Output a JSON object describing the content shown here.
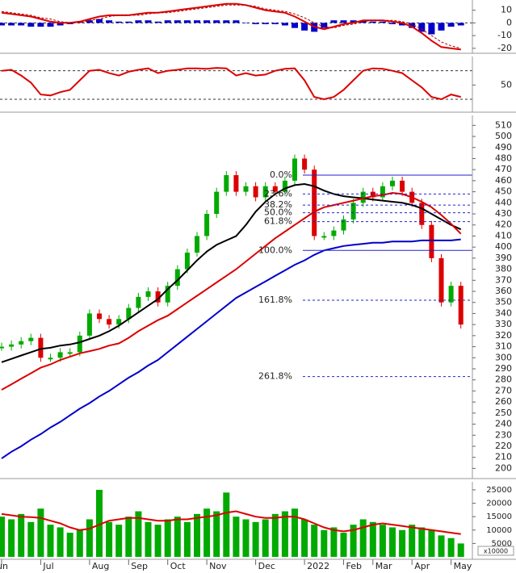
{
  "chart_data": [
    {
      "type": "macd",
      "ylim": [
        -22,
        18
      ],
      "yticks": [
        10,
        0,
        -10,
        -20
      ],
      "series": [
        {
          "color": "#0000cc",
          "kind": "bar",
          "values": [
            -2,
            -2,
            -2,
            -3,
            -3,
            -3,
            -2,
            -1,
            1,
            2,
            3,
            2,
            1,
            1,
            2,
            2,
            1,
            2,
            2,
            2,
            2,
            2,
            2,
            2,
            2,
            0,
            -1,
            -1,
            -1,
            -2,
            -4,
            -6,
            -7,
            -4,
            2,
            2,
            2,
            2,
            1,
            1,
            -1,
            -2,
            -4,
            -7,
            -9,
            -6,
            -3,
            -2
          ]
        },
        {
          "color": "#dd0000",
          "kind": "line",
          "values": [
            8,
            7,
            6,
            5,
            3,
            1,
            0,
            0,
            1,
            3,
            5,
            6,
            6,
            6,
            7,
            8,
            8,
            9,
            10,
            11,
            12,
            13,
            14,
            15,
            15,
            14,
            12,
            10,
            9,
            8,
            5,
            1,
            -3,
            -5,
            -3,
            -1,
            0,
            2,
            2,
            2,
            1,
            0,
            -3,
            -8,
            -14,
            -19,
            -20,
            -21
          ]
        },
        {
          "color": "#aa0000",
          "kind": "dashed",
          "values": [
            9,
            8,
            7,
            6,
            4,
            3,
            1,
            0,
            0,
            2,
            3,
            5,
            6,
            6,
            6,
            7,
            8,
            8,
            9,
            10,
            11,
            12,
            13,
            14,
            14,
            14,
            13,
            11,
            10,
            9,
            7,
            4,
            0,
            -3,
            -4,
            -2,
            -1,
            1,
            2,
            2,
            2,
            1,
            -1,
            -5,
            -10,
            -15,
            -18,
            -20
          ]
        }
      ]
    },
    {
      "type": "oscillator",
      "ylim": [
        -2,
        110
      ],
      "yticks": [
        50
      ],
      "levels": [
        80,
        20
      ],
      "series": [
        {
          "color": "#dd0000",
          "kind": "line",
          "values": [
            80,
            82,
            70,
            55,
            30,
            28,
            35,
            40,
            60,
            80,
            82,
            75,
            70,
            78,
            82,
            85,
            75,
            80,
            82,
            85,
            85,
            84,
            86,
            85,
            70,
            75,
            70,
            72,
            80,
            84,
            85,
            60,
            25,
            20,
            25,
            40,
            60,
            80,
            85,
            84,
            80,
            75,
            60,
            45,
            25,
            20,
            30,
            25
          ]
        }
      ]
    },
    {
      "type": "price",
      "categories": [
        "Jun",
        null,
        null,
        null,
        "Jul",
        null,
        null,
        null,
        null,
        "Aug",
        null,
        null,
        null,
        "Sep",
        null,
        null,
        null,
        "Oct",
        null,
        null,
        null,
        "Nov",
        null,
        null,
        null,
        null,
        "Dec",
        null,
        null,
        null,
        null,
        "2022",
        null,
        null,
        null,
        "Feb",
        null,
        null,
        "Mar",
        null,
        null,
        null,
        "Apr",
        null,
        null,
        null,
        "May",
        null
      ],
      "ylim": [
        193,
        519
      ],
      "yticks": [
        200,
        210,
        220,
        230,
        240,
        250,
        260,
        270,
        280,
        290,
        300,
        310,
        320,
        330,
        340,
        350,
        360,
        370,
        380,
        390,
        400,
        410,
        420,
        430,
        440,
        450,
        460,
        470,
        480,
        490,
        500,
        510
      ],
      "close": {
        "up_color": "#00aa00",
        "down_color": "#dd0000",
        "values": [
          310,
          312,
          315,
          318,
          300,
          300,
          305,
          305,
          320,
          340,
          335,
          330,
          335,
          345,
          355,
          360,
          350,
          365,
          380,
          395,
          410,
          430,
          450,
          465,
          450,
          455,
          445,
          455,
          450,
          460,
          480,
          470,
          410,
          410,
          415,
          425,
          440,
          450,
          445,
          455,
          460,
          450,
          440,
          420,
          390,
          350,
          365,
          330
        ]
      },
      "series": [
        {
          "color": "#000000",
          "kind": "line",
          "values": [
            296,
            299,
            302,
            305,
            308,
            309,
            311,
            312,
            314,
            317,
            320,
            324,
            329,
            335,
            341,
            347,
            353,
            362,
            370,
            379,
            388,
            396,
            402,
            406,
            410,
            420,
            432,
            441,
            448,
            453,
            456,
            457,
            455,
            451,
            448,
            446,
            445,
            444,
            443,
            442,
            441,
            440,
            438,
            435,
            430,
            425,
            420,
            416
          ]
        },
        {
          "color": "#dd0000",
          "kind": "line",
          "values": [
            271,
            276,
            281,
            286,
            291,
            294,
            298,
            301,
            304,
            306,
            308,
            311,
            313,
            318,
            324,
            329,
            334,
            338,
            344,
            350,
            356,
            362,
            368,
            374,
            380,
            387,
            394,
            401,
            408,
            414,
            420,
            426,
            432,
            436,
            438,
            440,
            442,
            444,
            446,
            447,
            449,
            448,
            445,
            441,
            436,
            429,
            421,
            412
          ]
        },
        {
          "color": "#0000cc",
          "kind": "line",
          "values": [
            209,
            215,
            220,
            226,
            231,
            237,
            242,
            248,
            254,
            259,
            265,
            270,
            276,
            282,
            287,
            293,
            298,
            305,
            312,
            319,
            326,
            333,
            340,
            347,
            354,
            359,
            364,
            369,
            374,
            379,
            384,
            388,
            393,
            397,
            399,
            401,
            402,
            403,
            404,
            404,
            405,
            405,
            405,
            406,
            406,
            406,
            406,
            407
          ]
        }
      ],
      "fib_levels": [
        {
          "label": "0.0%",
          "value": 465,
          "dashed": false
        },
        {
          "label": "23.6%",
          "value": 448,
          "dashed": true
        },
        {
          "label": "38.2%",
          "value": 438,
          "dashed": true
        },
        {
          "label": "50.0%",
          "value": 431,
          "dashed": true
        },
        {
          "label": "61.8%",
          "value": 423,
          "dashed": true
        },
        {
          "label": "100.0%",
          "value": 397,
          "dashed": false
        },
        {
          "label": "161.8%",
          "value": 352,
          "dashed": true
        },
        {
          "label": "261.8%",
          "value": 283,
          "dashed": true
        }
      ],
      "fib_color": "#2222cc"
    },
    {
      "type": "volume",
      "ylim": [
        0,
        28000
      ],
      "yticks": [
        25000,
        20000,
        15000,
        10000,
        5000
      ],
      "unit_label": "x10000",
      "series": [
        {
          "color": "#00aa00",
          "kind": "bar",
          "values": [
            15000,
            14000,
            16000,
            13000,
            18000,
            12000,
            11000,
            9000,
            10000,
            14000,
            25000,
            13000,
            12000,
            15000,
            17000,
            13000,
            12000,
            14000,
            15000,
            13000,
            16000,
            18000,
            17000,
            24000,
            15000,
            14000,
            13000,
            14000,
            16000,
            17000,
            18000,
            14000,
            12000,
            10000,
            11000,
            9000,
            12000,
            14000,
            13000,
            12000,
            11000,
            10000,
            12000,
            11000,
            10000,
            8000,
            7000,
            5000
          ]
        },
        {
          "color": "#dd0000",
          "kind": "line",
          "values": [
            16000,
            15500,
            15000,
            14800,
            14500,
            13500,
            12500,
            11000,
            10000,
            10500,
            12000,
            13500,
            14000,
            14500,
            14500,
            14000,
            13500,
            13500,
            14000,
            14000,
            14500,
            15000,
            15500,
            16500,
            17000,
            16000,
            15000,
            14500,
            14500,
            15000,
            15000,
            14000,
            12500,
            11000,
            10000,
            9500,
            10000,
            11000,
            12000,
            12500,
            12000,
            11500,
            11000,
            10500,
            10000,
            9500,
            9000,
            8500
          ]
        }
      ]
    }
  ]
}
